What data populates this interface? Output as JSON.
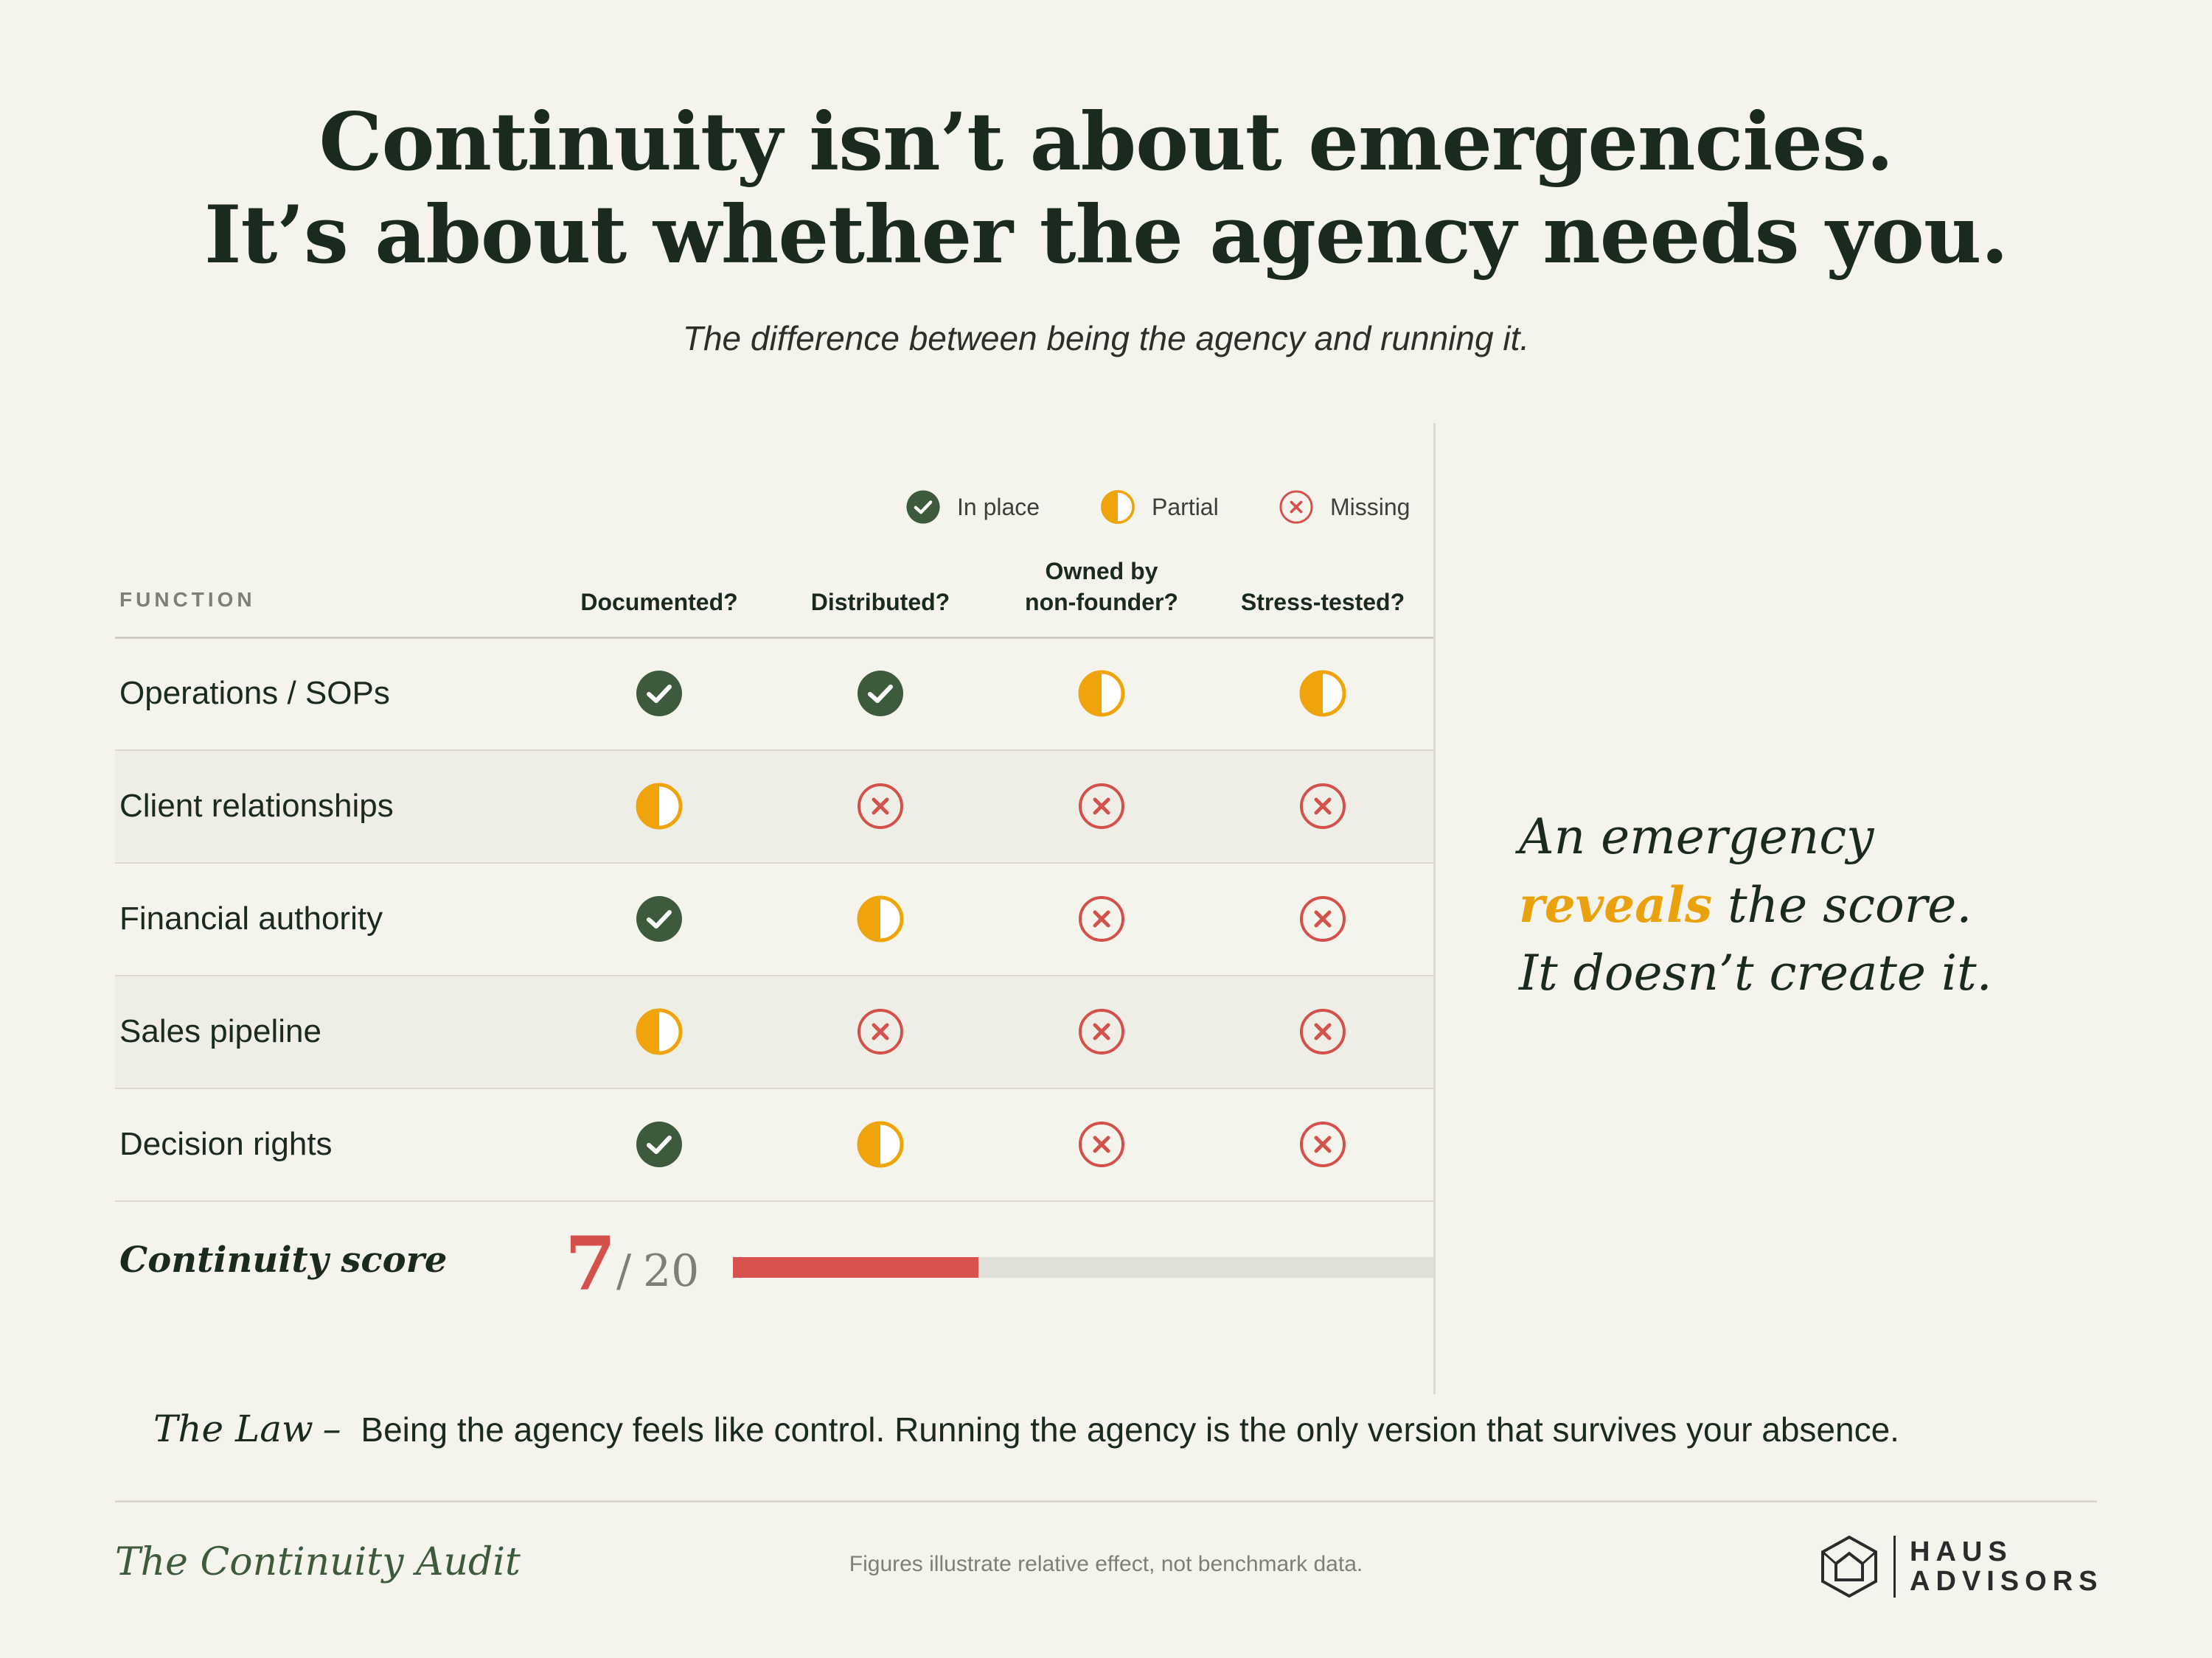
{
  "headline": {
    "line1": "Continuity isn’t about emergencies.",
    "line2": "It’s about whether the agency needs you."
  },
  "subtitle": "The difference between being the agency and running it.",
  "legend": {
    "in_place": "In place",
    "partial": "Partial",
    "missing": "Missing"
  },
  "colors": {
    "in_place": "#3d5a3c",
    "partial": "#f0a40c",
    "missing": "#d3514a",
    "background": "#f5f4ec"
  },
  "table": {
    "function_header": "FUNCTION",
    "columns": [
      {
        "line1": "",
        "line2": "Documented?"
      },
      {
        "line1": "",
        "line2": "Distributed?"
      },
      {
        "line1": "Owned by",
        "line2": "non-founder?"
      },
      {
        "line1": "",
        "line2": "Stress-tested?"
      }
    ],
    "rows": [
      {
        "label": "Operations / SOPs",
        "status": [
          "in_place",
          "in_place",
          "partial",
          "partial"
        ]
      },
      {
        "label": "Client relationships",
        "status": [
          "partial",
          "missing",
          "missing",
          "missing"
        ]
      },
      {
        "label": "Financial authority",
        "status": [
          "in_place",
          "partial",
          "missing",
          "missing"
        ]
      },
      {
        "label": "Sales pipeline",
        "status": [
          "partial",
          "missing",
          "missing",
          "missing"
        ]
      },
      {
        "label": "Decision rights",
        "status": [
          "in_place",
          "partial",
          "missing",
          "missing"
        ]
      }
    ]
  },
  "score": {
    "label": "Continuity score",
    "value": "7",
    "separator": "/",
    "total": "20",
    "fraction": 0.35
  },
  "quote": {
    "line1": "An emergency",
    "highlight": "reveals",
    "line2_rest": " the score.",
    "line3": "It doesn’t create it."
  },
  "law": {
    "title": "The Law",
    "dash": "–",
    "text": "Being the agency feels like control. Running the agency is the only version that survives your absence."
  },
  "footer": {
    "title": "The Continuity Audit",
    "note": "Figures illustrate relative effect, not benchmark data.",
    "brand_line1": "HAUS",
    "brand_line2": "ADVISORS",
    "logo_icon": "house-hexagon-icon"
  }
}
